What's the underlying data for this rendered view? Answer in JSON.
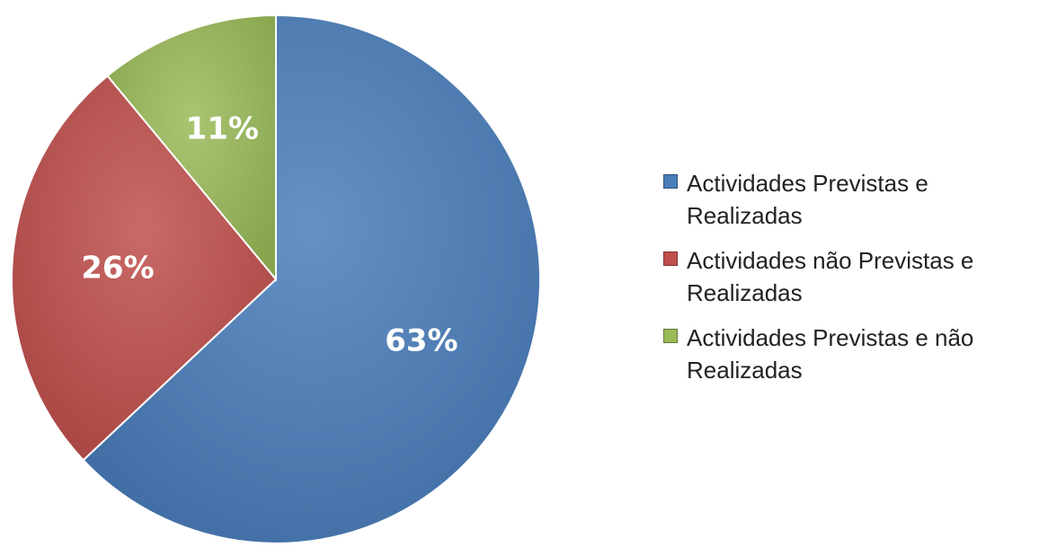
{
  "chart_data": {
    "type": "pie",
    "series": [
      {
        "name": "Actividades Previstas e Realizadas",
        "color": "#4a7ebb"
      },
      {
        "name": "Actividades não Previstas e Realizadas",
        "color": "#c0504d"
      },
      {
        "name": "Actividades Previstas e não Realizadas",
        "color": "#9bbb59"
      }
    ],
    "values": [
      63,
      26,
      11
    ],
    "value_labels": [
      "63%",
      "26%",
      "11%"
    ],
    "legend": "right"
  }
}
